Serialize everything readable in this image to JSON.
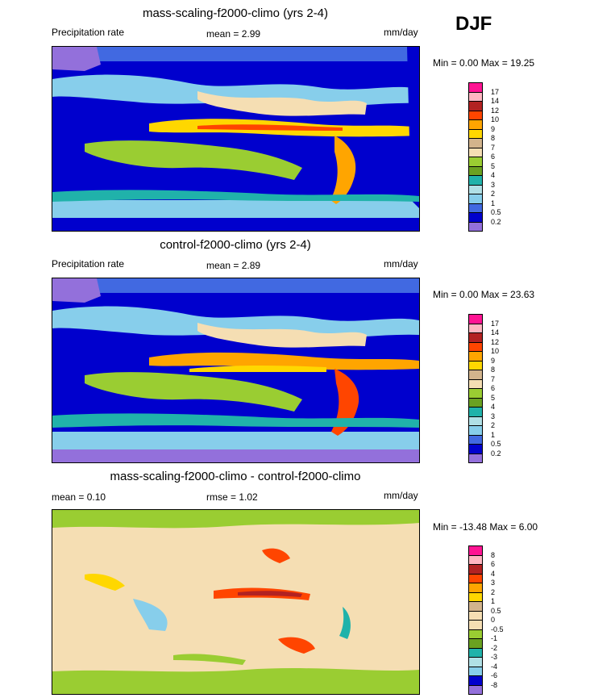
{
  "season": "DJF",
  "levels_abs": [
    "17",
    "14",
    "12",
    "10",
    "9",
    "8",
    "7",
    "6",
    "5",
    "4",
    "3",
    "2",
    "1",
    "0.5",
    "0.2"
  ],
  "colors_abs": [
    "#ff1493",
    "#ffb6c1",
    "#b22222",
    "#ff4500",
    "#ffa500",
    "#ffd700",
    "#d2b48c",
    "#f5deb3",
    "#9acd32",
    "#6aa121",
    "#20b2aa",
    "#b0e0e6",
    "#87ceeb",
    "#4169e1",
    "#0000cd",
    "#9370db"
  ],
  "levels_diff": [
    "8",
    "6",
    "4",
    "3",
    "2",
    "1",
    "0.5",
    "0",
    "-0.5",
    "-1",
    "-2",
    "-3",
    "-4",
    "-6",
    "-8"
  ],
  "colors_diff": [
    "#ff1493",
    "#ffb6c1",
    "#b22222",
    "#ff4500",
    "#ffa500",
    "#ffd700",
    "#d2b48c",
    "#f5deb3",
    "#f5deb3",
    "#9acd32",
    "#6aa121",
    "#20b2aa",
    "#b0e0e6",
    "#87ceeb",
    "#0000cd",
    "#9370db"
  ],
  "panels": [
    {
      "title": "mass-scaling-f2000-climo (yrs 2-4)",
      "left_label": "Precipitation rate",
      "mean_text": "mean =   2.99",
      "units": "mm/day",
      "minmax": "Min =   0.00 Max =  19.25"
    },
    {
      "title": "control-f2000-climo (yrs 2-4)",
      "left_label": "Precipitation rate",
      "mean_text": "mean =   2.89",
      "units": "mm/day",
      "minmax": "Min =   0.00 Max =  23.63"
    },
    {
      "title": "mass-scaling-f2000-climo - control-f2000-climo",
      "left_label": "mean =   0.10",
      "mean_text": "rmse =   1.02",
      "units": "mm/day",
      "minmax": "Min = -13.48 Max =   6.00"
    }
  ],
  "chart_data": [
    {
      "type": "heatmap",
      "title": "mass-scaling-f2000-climo (yrs 2-4)",
      "variable": "Precipitation rate",
      "units": "mm/day",
      "mean": 2.99,
      "min": 0.0,
      "max": 19.25,
      "contour_levels": [
        0.2,
        0.5,
        1,
        2,
        3,
        4,
        5,
        6,
        7,
        8,
        9,
        10,
        12,
        14,
        17
      ]
    },
    {
      "type": "heatmap",
      "title": "control-f2000-climo (yrs 2-4)",
      "variable": "Precipitation rate",
      "units": "mm/day",
      "mean": 2.89,
      "min": 0.0,
      "max": 23.63,
      "contour_levels": [
        0.2,
        0.5,
        1,
        2,
        3,
        4,
        5,
        6,
        7,
        8,
        9,
        10,
        12,
        14,
        17
      ]
    },
    {
      "type": "heatmap",
      "title": "mass-scaling-f2000-climo - control-f2000-climo",
      "units": "mm/day",
      "mean": 0.1,
      "rmse": 1.02,
      "min": -13.48,
      "max": 6.0,
      "contour_levels": [
        -8,
        -6,
        -4,
        -3,
        -2,
        -1,
        -0.5,
        0,
        0.5,
        1,
        2,
        3,
        4,
        6,
        8
      ]
    }
  ]
}
